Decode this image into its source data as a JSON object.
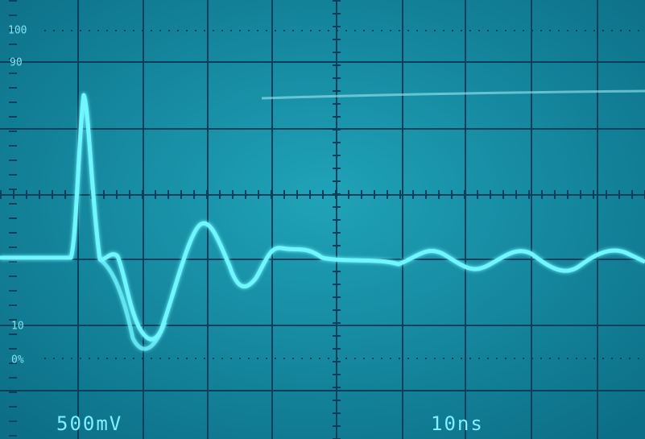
{
  "screen": {
    "labels": {
      "top": "100",
      "ninety": "90",
      "ten": "10",
      "zero": "0%"
    },
    "volts_per_div": "500mV",
    "time_per_div": "10ns"
  }
}
